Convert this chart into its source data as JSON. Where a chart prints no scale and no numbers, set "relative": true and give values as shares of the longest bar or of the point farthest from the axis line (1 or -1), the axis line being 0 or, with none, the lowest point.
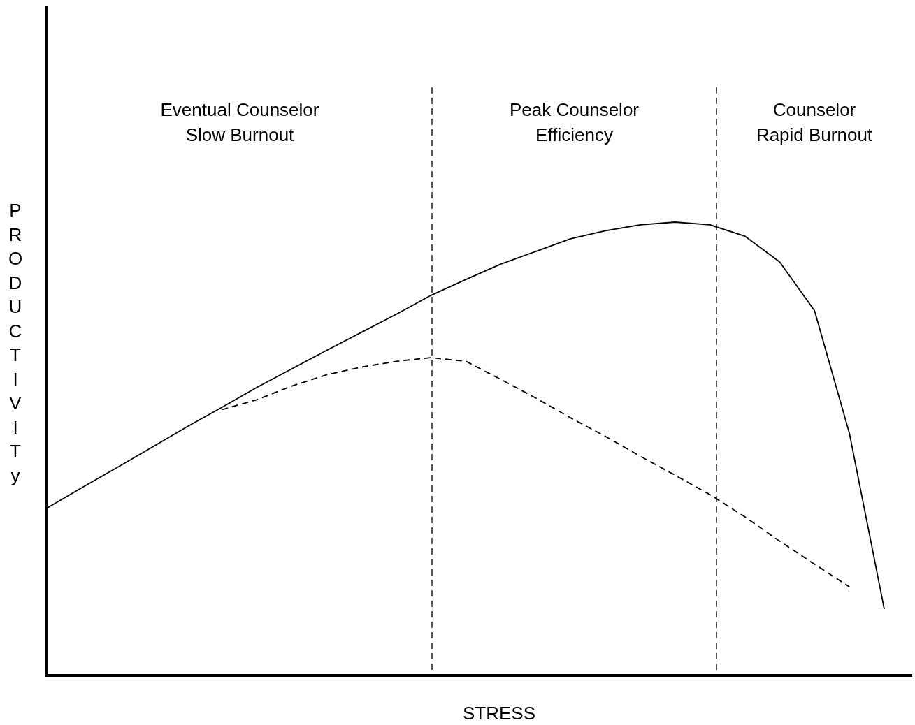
{
  "chart_data": {
    "type": "line",
    "relative": true,
    "xlabel": "STRESS",
    "ylabel": "PRODUCTIVITy",
    "marker": "none",
    "categories": [
      null,
      null,
      null,
      null,
      null,
      null,
      null,
      null,
      null,
      null,
      null,
      null,
      null,
      null,
      null,
      null,
      null,
      null,
      null,
      null,
      null,
      null,
      null,
      null,
      null
    ],
    "series": [
      {
        "color": "#000000",
        "line_style": "solid",
        "values": [
          0.368,
          0.413,
          0.457,
          0.502,
          0.547,
          0.59,
          0.634,
          0.675,
          0.716,
          0.756,
          0.796,
          0.838,
          0.873,
          0.907,
          0.935,
          0.963,
          0.981,
          0.994,
          1,
          0.994,
          0.969,
          0.912,
          0.804,
          0.533,
          0.144
        ]
      },
      {
        "color": "#000000",
        "line_style": "dashed",
        "values": [
          null,
          null,
          null,
          null,
          null,
          0.585,
          0.607,
          0.637,
          0.662,
          0.679,
          0.692,
          0.7,
          0.692,
          0.652,
          0.611,
          0.567,
          0.526,
          0.482,
          0.44,
          0.397,
          0.348,
          0.294,
          0.243,
          0.193,
          null
        ]
      }
    ],
    "annotations": [
      "Eventual Counselor\nSlow Burnout",
      "Peak Counselor\nEfficiency",
      "Counselor\nRapid Burnout"
    ]
  }
}
